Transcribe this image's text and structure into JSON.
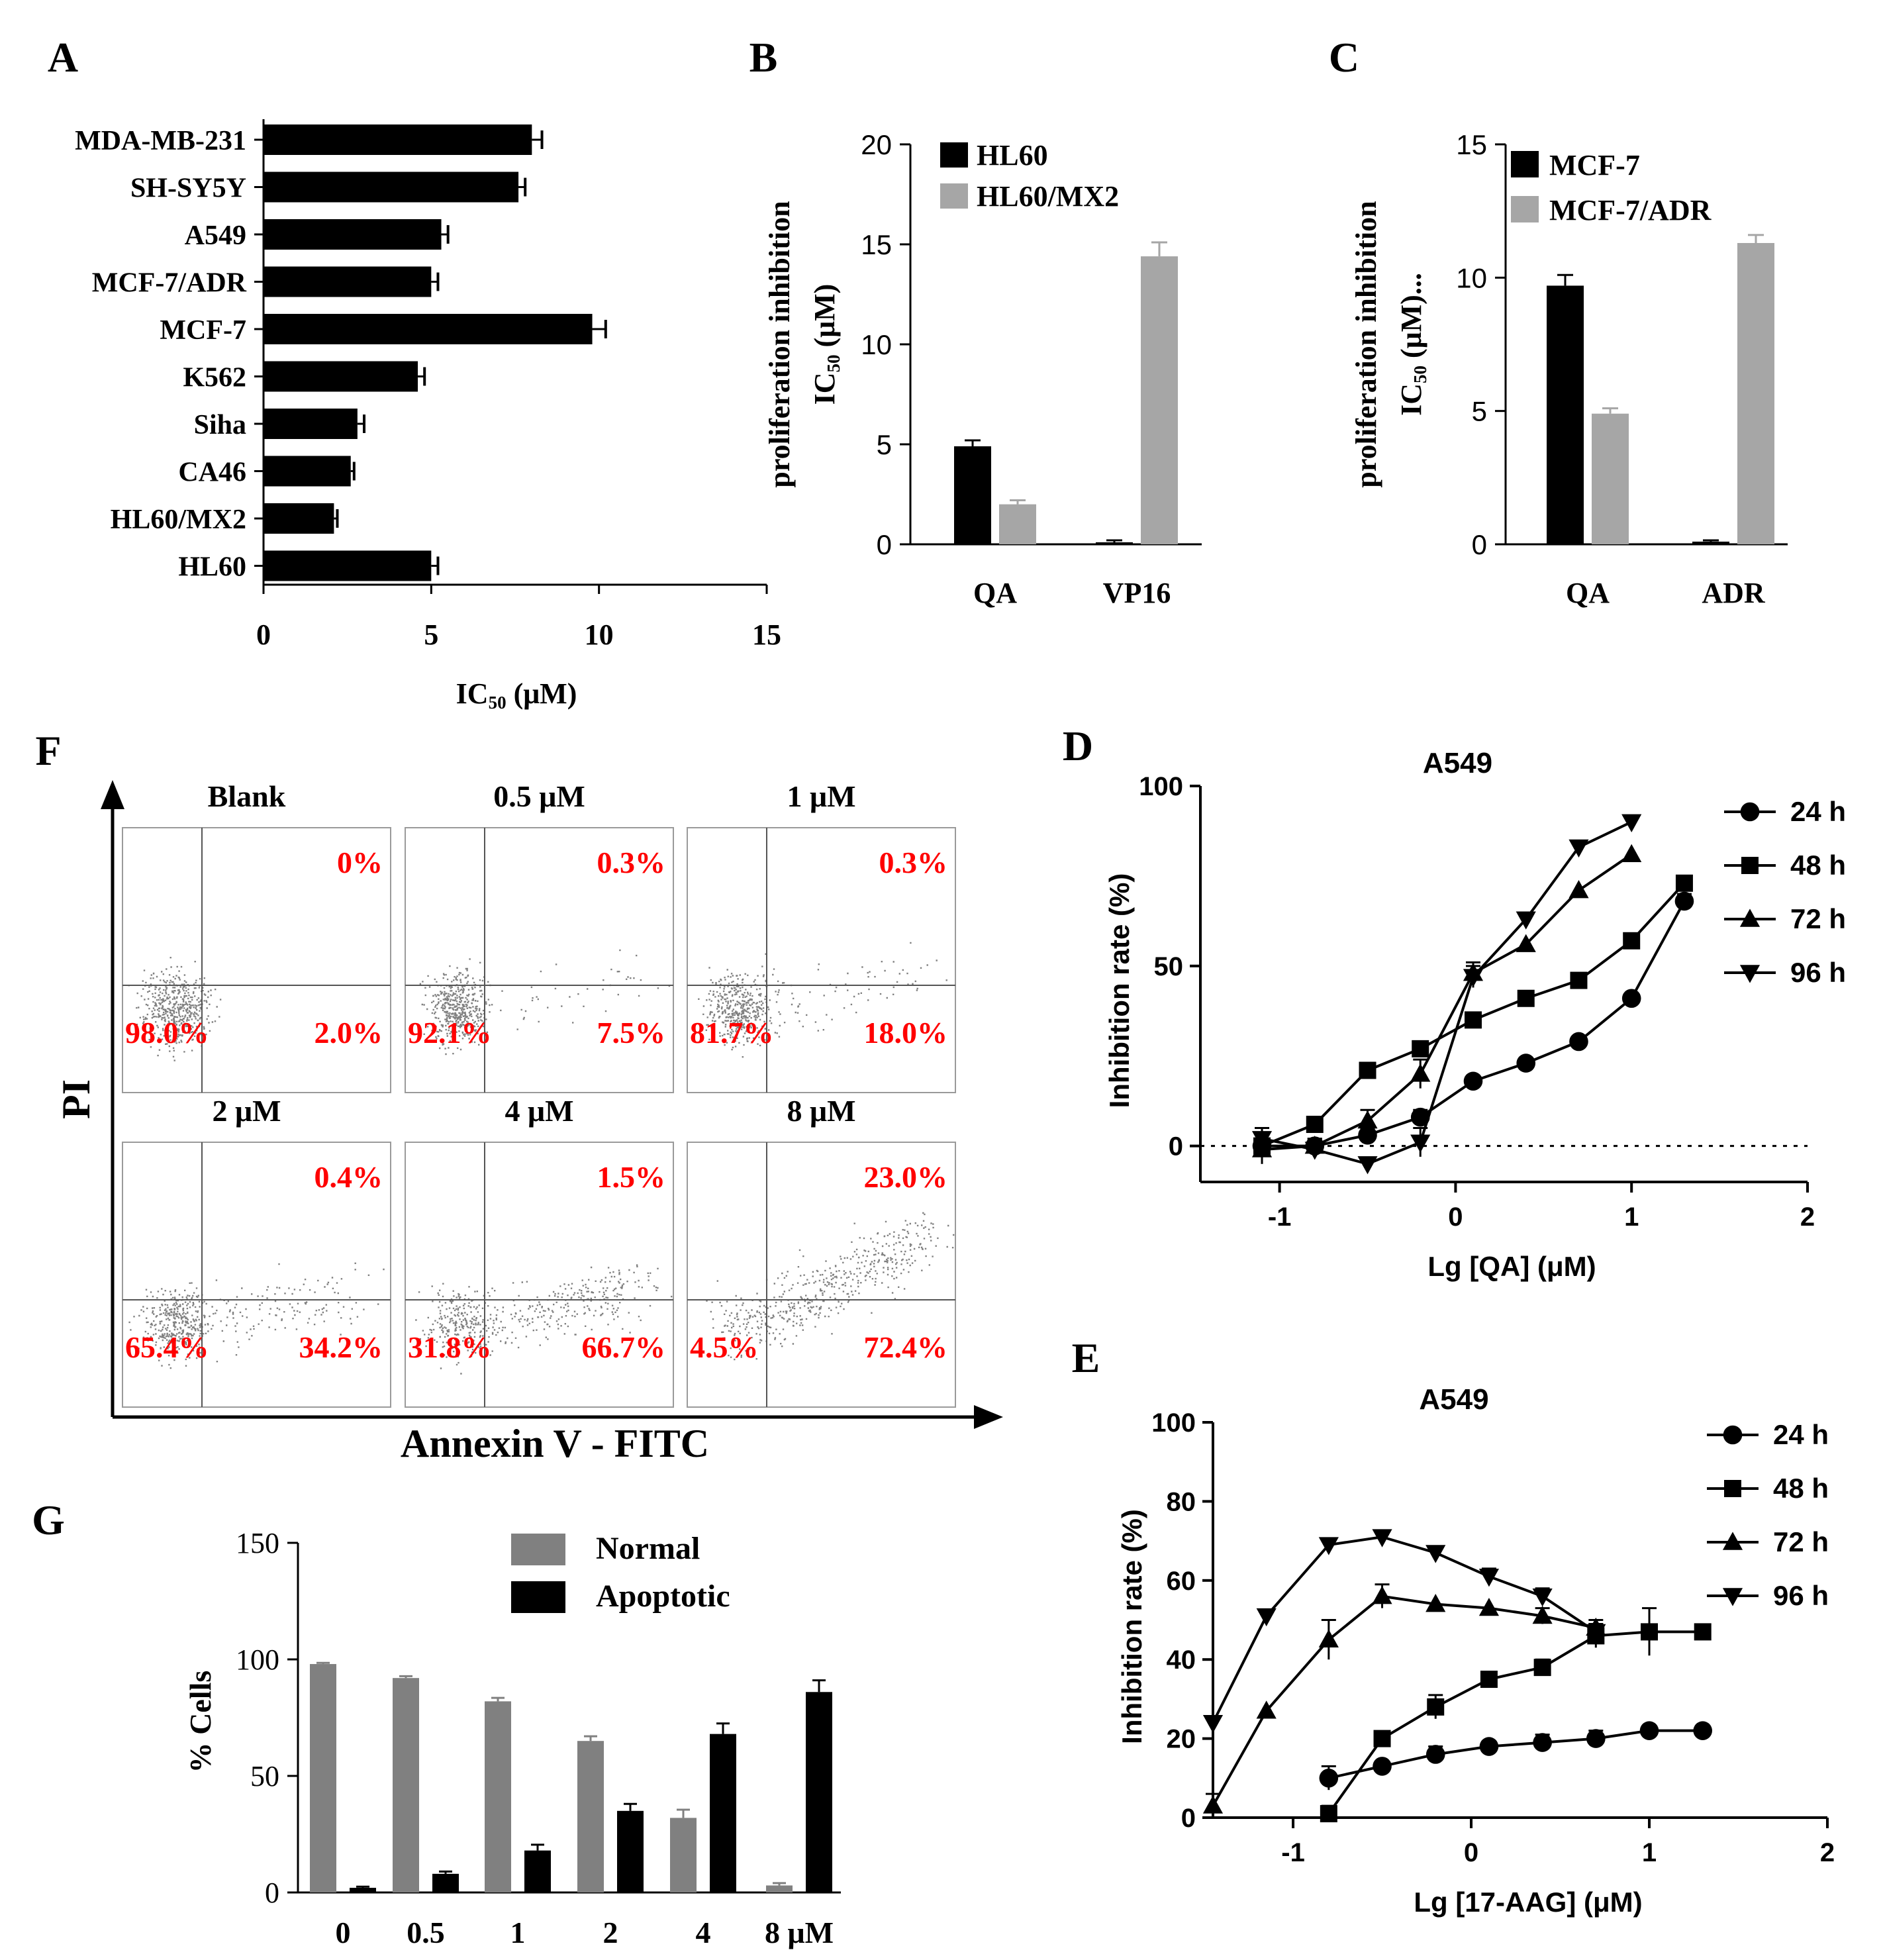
{
  "chart_data": [
    {
      "id": "A",
      "panel_label": "A",
      "type": "bar",
      "orientation": "horizontal",
      "categories": [
        "MDA-MB-231",
        "SH-SY5Y",
        "A549",
        "MCF-7/ADR",
        "MCF-7",
        "K562",
        "Siha",
        "CA46",
        "HL60/MX2",
        "HL60"
      ],
      "values": [
        8.0,
        7.6,
        5.3,
        5.0,
        9.8,
        4.6,
        2.8,
        2.6,
        2.1,
        5.0
      ],
      "errors": [
        0.3,
        0.2,
        0.2,
        0.2,
        0.4,
        0.2,
        0.2,
        0.1,
        0.1,
        0.2
      ],
      "xlim": [
        0,
        15
      ],
      "xticks": [
        "0",
        "5",
        "10",
        "15"
      ],
      "xlabel_main": "IC",
      "xlabel_sub": "50",
      "xlabel_unit": " (μM)",
      "color": "#000000"
    },
    {
      "id": "B",
      "panel_label": "B",
      "type": "bar",
      "categories": [
        "QA",
        "VP16"
      ],
      "series": [
        {
          "name": "HL60",
          "values": [
            4.9,
            0.1
          ],
          "errors": [
            0.3,
            0.1
          ],
          "color": "#000000"
        },
        {
          "name": "HL60/MX2",
          "values": [
            2.0,
            14.4
          ],
          "errors": [
            0.2,
            0.7
          ],
          "color": "#a6a6a6"
        }
      ],
      "ylim": [
        0,
        20
      ],
      "yticks": [
        "0",
        "5",
        "10",
        "15",
        "20"
      ],
      "ylabel_line1": "proliferation inhibition",
      "ylabel_line2_main": "IC",
      "ylabel_line2_sub": "50",
      "ylabel_line2_unit": " (μM)"
    },
    {
      "id": "C",
      "panel_label": "C",
      "type": "bar",
      "categories": [
        "QA",
        "ADR"
      ],
      "series": [
        {
          "name": "MCF-7",
          "values": [
            9.7,
            0.1
          ],
          "errors": [
            0.4,
            0.05
          ],
          "color": "#000000"
        },
        {
          "name": "MCF-7/ADR",
          "values": [
            4.9,
            11.3
          ],
          "errors": [
            0.2,
            0.3
          ],
          "color": "#a6a6a6"
        }
      ],
      "ylim": [
        0,
        15
      ],
      "yticks": [
        "0",
        "5",
        "10",
        "15"
      ],
      "ylabel_line1": "proliferation inhibition",
      "ylabel_line2_main": "IC",
      "ylabel_line2_sub": "50",
      "ylabel_line2_unit": " (μM)..."
    },
    {
      "id": "D",
      "panel_label": "D",
      "type": "line",
      "title": "A549",
      "xlabel": "Lg [QA]  (μM)",
      "ylabel": "Inhibition rate (%)",
      "xlim": [
        -1.45,
        2
      ],
      "ylim": [
        -10,
        100
      ],
      "xticks": [
        "-1",
        "0",
        "1",
        "2"
      ],
      "yticks": [
        "0",
        "50",
        "100"
      ],
      "zero_line": true,
      "series": [
        {
          "name": "24 h",
          "marker": "circle",
          "x": [
            -1.1,
            -0.8,
            -0.5,
            -0.2,
            0.1,
            0.4,
            0.7,
            1.0,
            1.3
          ],
          "y": [
            0,
            0,
            3,
            8,
            18,
            23,
            29,
            41,
            68
          ],
          "err": [
            3,
            2,
            2,
            2,
            1,
            1,
            1,
            1,
            2
          ]
        },
        {
          "name": "48 h",
          "marker": "square",
          "x": [
            -1.1,
            -0.8,
            -0.5,
            -0.2,
            0.1,
            0.4,
            0.7,
            1.0,
            1.3
          ],
          "y": [
            0,
            6,
            21,
            27,
            35,
            41,
            46,
            57,
            73
          ],
          "err": [
            3,
            2,
            1,
            2,
            2,
            1,
            1,
            1,
            2
          ]
        },
        {
          "name": "72 h",
          "marker": "triangle-up",
          "x": [
            -1.1,
            -0.8,
            -0.5,
            -0.2,
            0.1,
            0.4,
            0.7,
            1.0
          ],
          "y": [
            -1,
            0,
            7,
            20,
            48,
            56,
            71,
            81
          ],
          "err": [
            4,
            2,
            3,
            4,
            3,
            1,
            1,
            1
          ]
        },
        {
          "name": "96 h",
          "marker": "triangle-down",
          "x": [
            -1.1,
            -0.8,
            -0.5,
            -0.2,
            0.1,
            0.4,
            0.7,
            1.0
          ],
          "y": [
            2,
            -1,
            -5,
            1,
            47,
            63,
            83,
            90
          ],
          "err": [
            3,
            2,
            1,
            4,
            3,
            1,
            1,
            1
          ]
        }
      ]
    },
    {
      "id": "E",
      "panel_label": "E",
      "type": "line",
      "title": "A549",
      "xlabel": "Lg [17-AAG]  (μM)",
      "ylabel": "Inhibition rate (%)",
      "xlim": [
        -1.45,
        2
      ],
      "ylim": [
        0,
        100
      ],
      "xticks": [
        "-1",
        "0",
        "1",
        "2"
      ],
      "yticks": [
        "0",
        "20",
        "40",
        "60",
        "80",
        "100"
      ],
      "zero_line": false,
      "series": [
        {
          "name": "24 h",
          "marker": "circle",
          "x": [
            -0.8,
            -0.5,
            -0.2,
            0.1,
            0.4,
            0.7,
            1.0,
            1.3
          ],
          "y": [
            10,
            13,
            16,
            18,
            19,
            20,
            22,
            22
          ],
          "err": [
            3,
            1,
            2,
            1,
            2,
            2,
            1,
            1
          ]
        },
        {
          "name": "48 h",
          "marker": "square",
          "x": [
            -0.8,
            -0.5,
            -0.2,
            0.1,
            0.4,
            0.7,
            1.0,
            1.3
          ],
          "y": [
            1,
            20,
            28,
            35,
            38,
            46,
            47,
            47
          ],
          "err": [
            2,
            1,
            3,
            1,
            2,
            3,
            6,
            1
          ]
        },
        {
          "name": "72 h",
          "marker": "triangle-up",
          "x": [
            -1.45,
            -1.15,
            -0.8,
            -0.5,
            -0.2,
            0.1,
            0.4,
            0.7
          ],
          "y": [
            3,
            27,
            45,
            56,
            54,
            53,
            51,
            48
          ],
          "err": [
            3,
            1,
            5,
            3,
            1,
            1,
            2,
            2
          ]
        },
        {
          "name": "96 h",
          "marker": "triangle-down",
          "x": [
            -1.45,
            -1.15,
            -0.8,
            -0.5,
            -0.2,
            0.1,
            0.4,
            0.7
          ],
          "y": [
            24,
            51,
            69,
            71,
            67,
            61,
            56,
            47
          ],
          "err": [
            1,
            1,
            1,
            1,
            1,
            2,
            2,
            2
          ]
        }
      ]
    },
    {
      "id": "F",
      "panel_label": "F",
      "type": "scatter",
      "description_axes": {
        "y": "PI",
        "x": "Annexin V - FITC"
      },
      "plots": [
        {
          "title": "Blank",
          "upper_right": "0%",
          "lower_left": "98.0%",
          "lower_right": "2.0%",
          "spread": 0.0
        },
        {
          "title": "0.5 μM",
          "upper_right": "0.3%",
          "lower_left": "92.1%",
          "lower_right": "7.5%",
          "spread": 0.1
        },
        {
          "title": "1 μM",
          "upper_right": "0.3%",
          "lower_left": "81.7%",
          "lower_right": "18.0%",
          "spread": 0.2
        },
        {
          "title": "2 μM",
          "upper_right": "0.4%",
          "lower_left": "65.4%",
          "lower_right": "34.2%",
          "spread": 0.35
        },
        {
          "title": "4 μM",
          "upper_right": "1.5%",
          "lower_left": "31.8%",
          "lower_right": "66.7%",
          "spread": 0.65
        },
        {
          "title": "8 μM",
          "upper_right": "23.0%",
          "lower_left": "4.5%",
          "lower_right": "72.4%",
          "spread": 0.95
        }
      ],
      "label_color": "#ff0000"
    },
    {
      "id": "G",
      "panel_label": "G",
      "type": "bar",
      "categories": [
        "0",
        "0.5",
        "1",
        "2",
        "4",
        "8 μM"
      ],
      "series": [
        {
          "name": "Normal",
          "values": [
            98,
            92,
            82,
            65,
            32,
            3
          ],
          "errors": [
            0.5,
            0.8,
            1.5,
            2,
            3.5,
            1
          ],
          "color": "#808080"
        },
        {
          "name": "Apoptotic",
          "values": [
            2,
            8,
            18,
            35,
            68,
            86
          ],
          "errors": [
            0.5,
            1,
            2.5,
            3,
            4.5,
            5
          ],
          "color": "#000000"
        }
      ],
      "ylim": [
        0,
        150
      ],
      "yticks": [
        "0",
        "50",
        "100",
        "150"
      ],
      "ylabel": "% Cells"
    }
  ]
}
